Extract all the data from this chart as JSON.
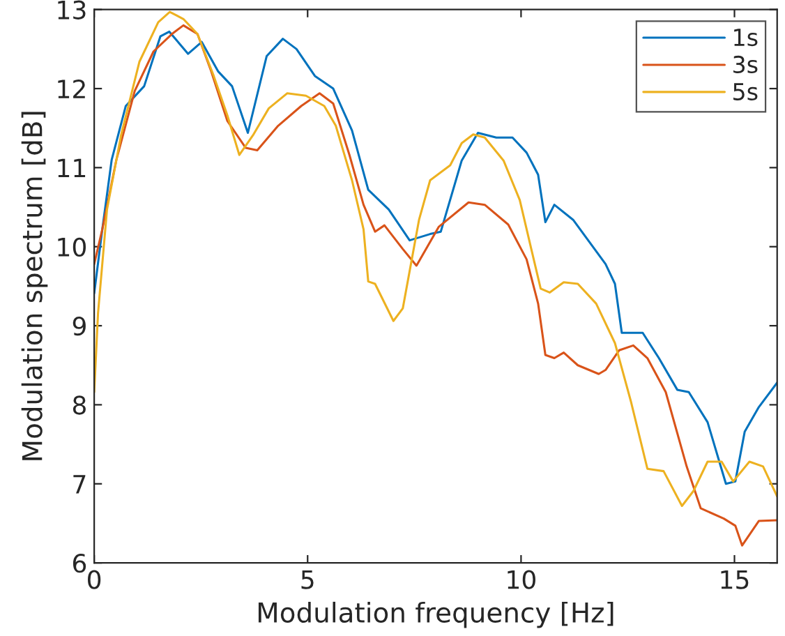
{
  "chart_data": {
    "type": "line",
    "xlabel": "Modulation frequency [Hz]",
    "ylabel": "Modulation spectrum [dB]",
    "xlim": [
      0,
      16
    ],
    "ylim": [
      6,
      13
    ],
    "xticks": [
      0,
      5,
      10,
      15
    ],
    "yticks": [
      6,
      7,
      8,
      9,
      10,
      11,
      12,
      13
    ],
    "grid": false,
    "legend": "top right",
    "marker": "none",
    "line_style": "solid",
    "series": [
      {
        "name": "1s",
        "color": "#0072bd",
        "x": [
          0,
          0.19,
          0.41,
          0.74,
          1.17,
          1.55,
          1.76,
          2.2,
          2.52,
          2.9,
          3.23,
          3.6,
          4.04,
          4.42,
          4.74,
          5.17,
          5.6,
          6.04,
          6.42,
          6.9,
          7.39,
          7.87,
          8.12,
          8.61,
          8.99,
          9.42,
          9.8,
          10.13,
          10.4,
          10.57,
          10.78,
          11.22,
          11.98,
          12.2,
          12.36,
          12.85,
          13.23,
          13.66,
          13.93,
          14.37,
          14.8,
          15.02,
          15.24,
          15.57,
          16
        ],
        "values": [
          9.41,
          10.22,
          11.1,
          11.78,
          12.03,
          12.66,
          12.72,
          12.44,
          12.59,
          12.22,
          12.03,
          11.44,
          12.41,
          12.63,
          12.5,
          12.16,
          12.0,
          11.47,
          10.72,
          10.47,
          10.08,
          10.16,
          10.19,
          11.09,
          11.44,
          11.38,
          11.38,
          11.19,
          10.91,
          10.31,
          10.53,
          10.34,
          9.78,
          9.53,
          8.91,
          8.91,
          8.59,
          8.19,
          8.16,
          7.78,
          7.0,
          7.03,
          7.66,
          7.97,
          8.28
        ]
      },
      {
        "name": "3s",
        "color": "#d95319",
        "x": [
          0,
          0.19,
          0.52,
          0.95,
          1.39,
          1.82,
          2.09,
          2.42,
          2.74,
          3.12,
          3.55,
          3.82,
          4.31,
          4.85,
          5.28,
          5.6,
          5.98,
          6.31,
          6.58,
          6.8,
          7.23,
          7.55,
          8.07,
          8.77,
          9.15,
          9.7,
          10.13,
          10.4,
          10.57,
          10.78,
          11.0,
          11.33,
          11.82,
          11.98,
          12.3,
          12.63,
          12.96,
          13.39,
          13.88,
          14.21,
          14.75,
          15.02,
          15.18,
          15.57,
          16
        ],
        "values": [
          9.78,
          10.22,
          11.1,
          11.97,
          12.47,
          12.69,
          12.8,
          12.69,
          12.22,
          11.59,
          11.25,
          11.22,
          11.53,
          11.78,
          11.94,
          11.81,
          11.16,
          10.53,
          10.19,
          10.27,
          9.97,
          9.76,
          10.25,
          10.56,
          10.53,
          10.28,
          9.84,
          9.28,
          8.63,
          8.59,
          8.66,
          8.5,
          8.39,
          8.44,
          8.69,
          8.75,
          8.59,
          8.16,
          7.22,
          6.69,
          6.56,
          6.47,
          6.22,
          6.53,
          6.54
        ]
      },
      {
        "name": "5s",
        "color": "#edb120",
        "x": [
          0,
          0.09,
          0.3,
          0.63,
          1.06,
          1.5,
          1.77,
          2.09,
          2.42,
          2.8,
          3.12,
          3.4,
          3.72,
          4.09,
          4.52,
          4.96,
          5.39,
          5.66,
          6.04,
          6.31,
          6.42,
          6.58,
          7.01,
          7.23,
          7.61,
          7.87,
          8.34,
          8.61,
          8.88,
          9.15,
          9.59,
          9.97,
          10.24,
          10.46,
          10.67,
          11.0,
          11.33,
          11.76,
          12.2,
          12.58,
          12.96,
          13.34,
          13.77,
          14.04,
          14.37,
          14.7,
          14.97,
          15.35,
          15.67,
          16
        ],
        "values": [
          8.16,
          9.16,
          10.47,
          11.41,
          12.34,
          12.84,
          12.97,
          12.88,
          12.69,
          12.16,
          11.66,
          11.16,
          11.41,
          11.75,
          11.94,
          11.91,
          11.78,
          11.53,
          10.84,
          10.22,
          9.56,
          9.53,
          9.06,
          9.22,
          10.34,
          10.84,
          11.03,
          11.31,
          11.42,
          11.38,
          11.09,
          10.59,
          9.97,
          9.47,
          9.42,
          9.55,
          9.53,
          9.28,
          8.78,
          8.03,
          7.19,
          7.16,
          6.72,
          6.91,
          7.28,
          7.28,
          7.03,
          7.28,
          7.22,
          6.84
        ]
      }
    ]
  }
}
